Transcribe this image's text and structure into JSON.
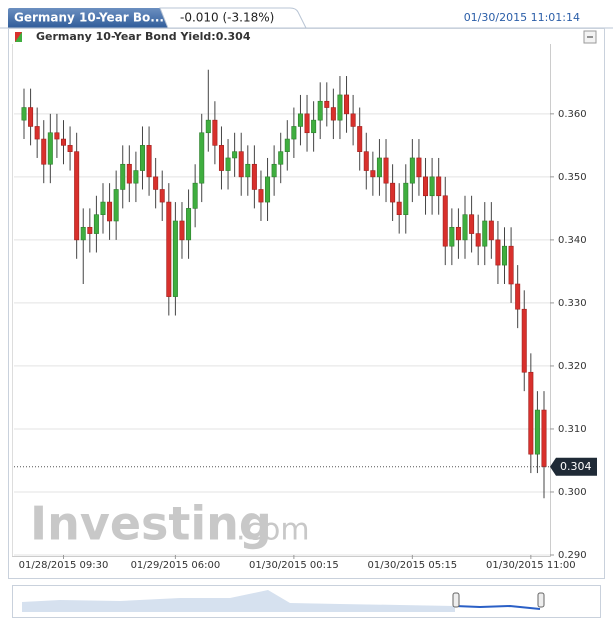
{
  "header": {
    "tab_title": "Germany 10-Year Bo...",
    "change": "-0.010 (-3.18%)",
    "timestamp": "01/30/2015 11:01:14"
  },
  "watermark": {
    "main": "Investing",
    "suffix": ".com"
  },
  "chart_data": {
    "type": "candlestick",
    "legend_label": "Germany 10-Year Bond Yield:0.304",
    "last": 0.304,
    "up_color": "#3fae3f",
    "down_color": "#d8302c",
    "grid": true,
    "ylim": [
      0.29,
      0.3714
    ],
    "yticks": [
      {
        "value": 0.29,
        "label": "0.290"
      },
      {
        "value": 0.3,
        "label": "0.300"
      },
      {
        "value": 0.31,
        "label": "0.310"
      },
      {
        "value": 0.32,
        "label": "0.320"
      },
      {
        "value": 0.33,
        "label": "0.330"
      },
      {
        "value": 0.34,
        "label": "0.340"
      },
      {
        "value": 0.35,
        "label": "0.350"
      },
      {
        "value": 0.36,
        "label": "0.360"
      }
    ],
    "categories": [
      null,
      null,
      null,
      null,
      null,
      null,
      "01/28/2015 09:30",
      null,
      null,
      null,
      null,
      null,
      null,
      null,
      null,
      null,
      null,
      null,
      null,
      null,
      null,
      null,
      null,
      "01/29/2015 06:00",
      null,
      null,
      null,
      null,
      null,
      null,
      null,
      null,
      null,
      null,
      null,
      null,
      null,
      null,
      null,
      null,
      null,
      "01/30/2015 00:15",
      null,
      null,
      null,
      null,
      null,
      null,
      null,
      null,
      null,
      null,
      null,
      null,
      null,
      null,
      null,
      null,
      null,
      "01/30/2015 05:15",
      null,
      null,
      null,
      null,
      null,
      null,
      null,
      null,
      null,
      null,
      null,
      null,
      null,
      null,
      null,
      null,
      null,
      "01/30/2015 11:00",
      null,
      null
    ],
    "open": [
      0.359,
      0.361,
      0.358,
      0.356,
      0.352,
      0.357,
      0.356,
      0.355,
      0.354,
      0.34,
      0.342,
      0.341,
      0.344,
      0.346,
      0.343,
      0.348,
      0.352,
      0.349,
      0.351,
      0.355,
      0.35,
      0.348,
      0.346,
      0.331,
      0.343,
      0.34,
      0.345,
      0.349,
      0.357,
      0.359,
      0.355,
      0.351,
      0.353,
      0.354,
      0.35,
      0.352,
      0.348,
      0.346,
      0.35,
      0.352,
      0.354,
      0.356,
      0.358,
      0.36,
      0.357,
      0.359,
      0.362,
      0.361,
      0.359,
      0.363,
      0.36,
      0.358,
      0.354,
      0.351,
      0.35,
      0.353,
      0.349,
      0.346,
      0.344,
      0.349,
      0.353,
      0.35,
      0.347,
      0.35,
      0.347,
      0.339,
      0.342,
      0.34,
      0.344,
      0.341,
      0.339,
      0.343,
      0.34,
      0.336,
      0.339,
      0.333,
      0.329,
      0.319,
      0.306,
      0.313
    ],
    "high": [
      0.364,
      0.364,
      0.361,
      0.359,
      0.36,
      0.36,
      0.359,
      0.358,
      0.357,
      0.345,
      0.345,
      0.347,
      0.349,
      0.349,
      0.351,
      0.355,
      0.355,
      0.354,
      0.358,
      0.358,
      0.353,
      0.351,
      0.349,
      0.346,
      0.346,
      0.348,
      0.352,
      0.36,
      0.367,
      0.362,
      0.358,
      0.356,
      0.357,
      0.357,
      0.355,
      0.355,
      0.351,
      0.353,
      0.355,
      0.357,
      0.359,
      0.361,
      0.363,
      0.363,
      0.362,
      0.365,
      0.365,
      0.364,
      0.366,
      0.366,
      0.363,
      0.361,
      0.357,
      0.354,
      0.356,
      0.356,
      0.352,
      0.349,
      0.352,
      0.356,
      0.356,
      0.353,
      0.353,
      0.353,
      0.35,
      0.345,
      0.345,
      0.347,
      0.347,
      0.344,
      0.346,
      0.346,
      0.343,
      0.342,
      0.342,
      0.336,
      0.332,
      0.322,
      0.316,
      0.316
    ],
    "low": [
      0.356,
      0.355,
      0.353,
      0.349,
      0.349,
      0.353,
      0.352,
      0.351,
      0.337,
      0.333,
      0.338,
      0.338,
      0.341,
      0.34,
      0.34,
      0.345,
      0.346,
      0.346,
      0.348,
      0.347,
      0.345,
      0.343,
      0.328,
      0.328,
      0.337,
      0.337,
      0.342,
      0.346,
      0.354,
      0.352,
      0.348,
      0.348,
      0.35,
      0.347,
      0.347,
      0.345,
      0.343,
      0.343,
      0.347,
      0.349,
      0.351,
      0.353,
      0.355,
      0.354,
      0.354,
      0.356,
      0.358,
      0.356,
      0.356,
      0.357,
      0.355,
      0.351,
      0.348,
      0.347,
      0.347,
      0.346,
      0.343,
      0.341,
      0.341,
      0.346,
      0.347,
      0.344,
      0.344,
      0.344,
      0.336,
      0.336,
      0.337,
      0.337,
      0.338,
      0.336,
      0.336,
      0.337,
      0.333,
      0.333,
      0.33,
      0.326,
      0.316,
      0.303,
      0.303,
      0.299
    ],
    "close": [
      0.361,
      0.358,
      0.356,
      0.352,
      0.357,
      0.356,
      0.355,
      0.354,
      0.34,
      0.342,
      0.341,
      0.344,
      0.346,
      0.343,
      0.348,
      0.352,
      0.349,
      0.351,
      0.355,
      0.35,
      0.348,
      0.346,
      0.331,
      0.343,
      0.34,
      0.345,
      0.349,
      0.357,
      0.359,
      0.355,
      0.351,
      0.353,
      0.354,
      0.35,
      0.352,
      0.348,
      0.346,
      0.35,
      0.352,
      0.354,
      0.356,
      0.358,
      0.36,
      0.357,
      0.359,
      0.362,
      0.361,
      0.359,
      0.363,
      0.36,
      0.358,
      0.354,
      0.351,
      0.35,
      0.353,
      0.349,
      0.346,
      0.344,
      0.349,
      0.353,
      0.35,
      0.347,
      0.35,
      0.347,
      0.339,
      0.342,
      0.34,
      0.344,
      0.341,
      0.339,
      0.343,
      0.34,
      0.336,
      0.339,
      0.333,
      0.329,
      0.319,
      0.306,
      0.313,
      0.304
    ]
  }
}
